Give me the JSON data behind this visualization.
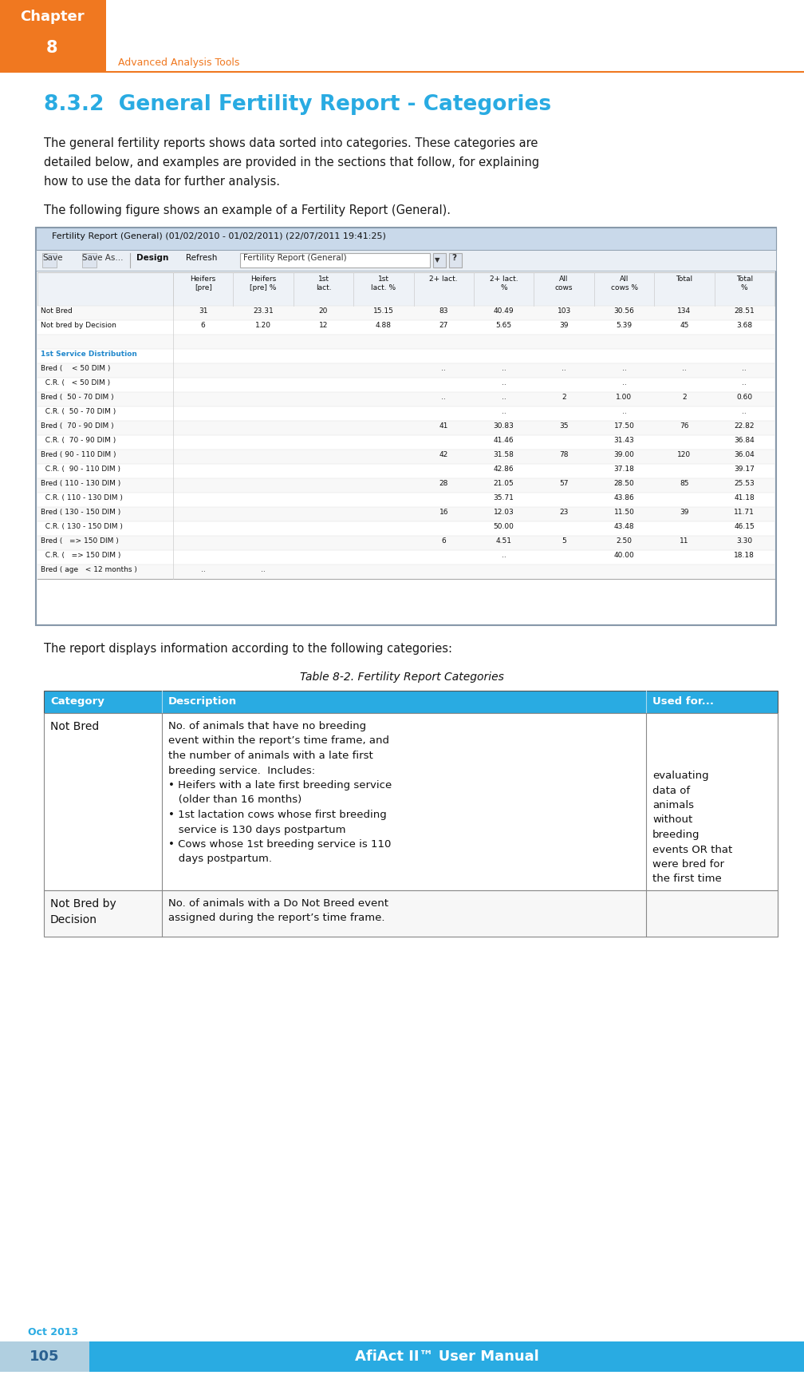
{
  "page_bg": "#ffffff",
  "header_orange_color": "#F07820",
  "header_text_color": "#ffffff",
  "chapter_label": "Chapter",
  "chapter_number": "8",
  "header_subtitle": "Advanced Analysis Tools",
  "section_title": "8.3.2  General Fertility Report - Categories",
  "section_title_color": "#29ABE2",
  "body_text_color": "#1a1a1a",
  "para1": "The general fertility reports shows data sorted into categories. These categories are\ndetailed below, and examples are provided in the sections that follow, for explaining\nhow to use the data for further analysis.",
  "para2": "The following figure shows an example of a Fertility Report (General).",
  "screenshot_title": "Fertility Report (General) (01/02/2010 - 01/02/2011) (22/07/2011 19:41:25)",
  "table_title": "Table 8-2. Fertility Report Categories",
  "table_header": [
    "Category",
    "Description",
    "Used for..."
  ],
  "table_header_bg": "#29ABE2",
  "table_header_text": "#ffffff",
  "footer_page_num": "105",
  "footer_page_bg": "#B0CFE0",
  "footer_title": "AfiAct II™ User Manual",
  "footer_title_bg": "#29ABE2",
  "footer_title_color": "#ffffff",
  "footer_date": "Oct 2013",
  "footer_date_color": "#29ABE2",
  "screenshot_rows": [
    {
      "label": "Not Bred",
      "cols": [
        "31",
        "23.31",
        "20",
        "15.15",
        "83",
        "40.49",
        "103",
        "30.56",
        "134",
        "28.51"
      ],
      "bold": false,
      "blue": false
    },
    {
      "label": "Not bred by Decision",
      "cols": [
        "6",
        "1.20",
        "12",
        "4.88",
        "27",
        "5.65",
        "39",
        "5.39",
        "45",
        "3.68"
      ],
      "bold": false,
      "blue": false
    },
    {
      "label": "",
      "cols": [],
      "bold": false,
      "blue": false
    },
    {
      "label": "1st Service Distribution",
      "cols": [],
      "bold": false,
      "blue": true
    },
    {
      "label": "Bred (    < 50 DIM )",
      "cols": [
        "",
        "",
        "..",
        "..",
        "..",
        "..",
        "..",
        ".."
      ],
      "bold": false,
      "blue": false
    },
    {
      "label": "  C.R. (   < 50 DIM )",
      "cols": [
        "",
        "",
        "",
        "..",
        "",
        "..",
        "",
        ".."
      ],
      "bold": false,
      "blue": false
    },
    {
      "label": "Bred (  50 - 70 DIM )",
      "cols": [
        "",
        "",
        "..",
        "..",
        "2",
        "1.00",
        "2",
        "0.60"
      ],
      "bold": false,
      "blue": false
    },
    {
      "label": "  C.R. (  50 - 70 DIM )",
      "cols": [
        "",
        "",
        "",
        "..",
        "",
        "..",
        "",
        ".."
      ],
      "bold": false,
      "blue": false
    },
    {
      "label": "Bred (  70 - 90 DIM )",
      "cols": [
        "",
        "",
        "41",
        "30.83",
        "35",
        "17.50",
        "76",
        "22.82"
      ],
      "bold": false,
      "blue": false
    },
    {
      "label": "  C.R. (  70 - 90 DIM )",
      "cols": [
        "",
        "",
        "",
        "41.46",
        "",
        "31.43",
        "",
        "36.84"
      ],
      "bold": false,
      "blue": false
    },
    {
      "label": "Bred ( 90 - 110 DIM )",
      "cols": [
        "",
        "",
        "42",
        "31.58",
        "78",
        "39.00",
        "120",
        "36.04"
      ],
      "bold": false,
      "blue": false
    },
    {
      "label": "  C.R. (  90 - 110 DIM )",
      "cols": [
        "",
        "",
        "",
        "42.86",
        "",
        "37.18",
        "",
        "39.17"
      ],
      "bold": false,
      "blue": false
    },
    {
      "label": "Bred ( 110 - 130 DIM )",
      "cols": [
        "",
        "",
        "28",
        "21.05",
        "57",
        "28.50",
        "85",
        "25.53"
      ],
      "bold": false,
      "blue": false
    },
    {
      "label": "  C.R. ( 110 - 130 DIM )",
      "cols": [
        "",
        "",
        "",
        "35.71",
        "",
        "43.86",
        "",
        "41.18"
      ],
      "bold": false,
      "blue": false
    },
    {
      "label": "Bred ( 130 - 150 DIM )",
      "cols": [
        "",
        "",
        "16",
        "12.03",
        "23",
        "11.50",
        "39",
        "11.71"
      ],
      "bold": false,
      "blue": false
    },
    {
      "label": "  C.R. ( 130 - 150 DIM )",
      "cols": [
        "",
        "",
        "",
        "50.00",
        "",
        "43.48",
        "",
        "46.15"
      ],
      "bold": false,
      "blue": false
    },
    {
      "label": "Bred (   => 150 DIM )",
      "cols": [
        "",
        "",
        "6",
        "4.51",
        "5",
        "2.50",
        "11",
        "3.30"
      ],
      "bold": false,
      "blue": false
    },
    {
      "label": "  C.R. (   => 150 DIM )",
      "cols": [
        "",
        "",
        "",
        "..",
        "",
        "40.00",
        "",
        "18.18"
      ],
      "bold": false,
      "blue": false
    },
    {
      "label": "Bred ( age   < 12 months )",
      "cols": [
        "..",
        ".."
      ],
      "bold": false,
      "blue": false
    }
  ],
  "screenshot_col_headers": [
    "Heifers\n[pre]",
    "Heifers\n[pre] %",
    "1st\nlact.",
    "1st\nlact. %",
    "2+ lact.",
    "2+ lact.\n%",
    "All\ncows",
    "All\ncows %",
    "Total",
    "Total\n%"
  ]
}
